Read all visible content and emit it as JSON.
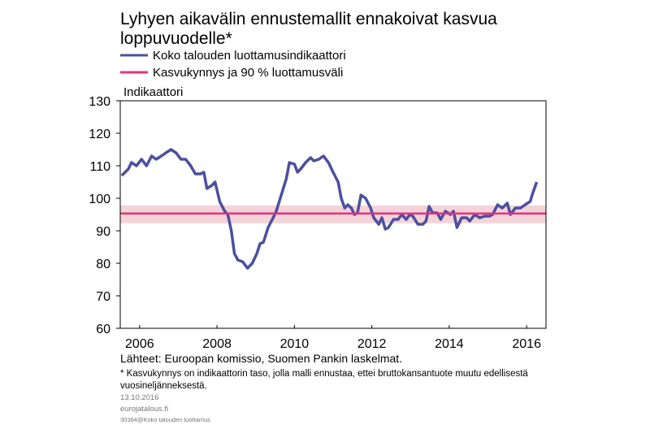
{
  "chart_data": {
    "type": "line",
    "title": [
      "Lyhyen aikavälin ennustemallit ennakoivat kasvua",
      "loppuvuodelle*"
    ],
    "y_label": "Indikaattori",
    "xlim": [
      2006,
      2017
    ],
    "xticks": [
      {
        "value": 2006.5,
        "label": "2006"
      },
      {
        "value": 2008.5,
        "label": "2008"
      },
      {
        "value": 2010.5,
        "label": "2010"
      },
      {
        "value": 2012.5,
        "label": "2012"
      },
      {
        "value": 2014.5,
        "label": "2014"
      },
      {
        "value": 2016.5,
        "label": "2016"
      }
    ],
    "ylim": [
      60,
      130
    ],
    "yticks": [
      60,
      70,
      80,
      90,
      100,
      110,
      120,
      130
    ],
    "series": [
      {
        "name": "Koko talouden luottamusindikaattori",
        "color": "#4a509f",
        "x": [
          2006.04,
          2006.21,
          2006.29,
          2006.42,
          2006.55,
          2006.68,
          2006.81,
          2006.93,
          2007.06,
          2007.18,
          2007.31,
          2007.44,
          2007.57,
          2007.69,
          2007.82,
          2007.94,
          2008.07,
          2008.16,
          2008.24,
          2008.37,
          2008.45,
          2008.57,
          2008.7,
          2008.78,
          2008.87,
          2008.95,
          2009.04,
          2009.16,
          2009.29,
          2009.41,
          2009.53,
          2009.61,
          2009.7,
          2009.82,
          2009.95,
          2010.03,
          2010.16,
          2010.29,
          2010.37,
          2010.5,
          2010.58,
          2010.66,
          2010.79,
          2010.92,
          2011.0,
          2011.13,
          2011.25,
          2011.38,
          2011.5,
          2011.63,
          2011.71,
          2011.8,
          2011.88,
          2011.97,
          2012.05,
          2012.13,
          2012.22,
          2012.34,
          2012.47,
          2012.55,
          2012.68,
          2012.76,
          2012.85,
          2012.93,
          2013.06,
          2013.18,
          2013.27,
          2013.39,
          2013.48,
          2013.56,
          2013.69,
          2013.82,
          2013.9,
          2013.98,
          2014.07,
          2014.19,
          2014.28,
          2014.4,
          2014.53,
          2014.61,
          2014.7,
          2014.82,
          2014.95,
          2015.03,
          2015.16,
          2015.29,
          2015.41,
          2015.54,
          2015.62,
          2015.75,
          2015.87,
          2016.0,
          2016.08,
          2016.21,
          2016.34,
          2016.46,
          2016.59,
          2016.67,
          2016.76
        ],
        "values": [
          107,
          109,
          111,
          110,
          112,
          110,
          113,
          112,
          113,
          114,
          115,
          114,
          112,
          112,
          110,
          107.5,
          107.5,
          108,
          103,
          104,
          105,
          99,
          96,
          95,
          90,
          83,
          81,
          80.5,
          78.5,
          80,
          83,
          86,
          86.5,
          91,
          94,
          96,
          101,
          106,
          111,
          110.5,
          108,
          109,
          111,
          112.5,
          111.5,
          112,
          113,
          111,
          108,
          105,
          100,
          97,
          98,
          97,
          95,
          95.5,
          101,
          100,
          97,
          94,
          92,
          94,
          90.5,
          91,
          93.5,
          93.5,
          95,
          93.5,
          95,
          94.5,
          92,
          92,
          93,
          97.5,
          95.5,
          95.5,
          93.5,
          96,
          95,
          96,
          91,
          94,
          94,
          93,
          95,
          94,
          94.5,
          94.5,
          95,
          98,
          97,
          98.5,
          95,
          97,
          97,
          98,
          99,
          102,
          105
        ]
      },
      {
        "name": "Kasvukynnys ja 90 % luottamusväli",
        "color": "#e6317f",
        "band_color": "#f3d3d8",
        "x": [
          2006,
          2017
        ],
        "values": [
          95.3,
          95.3
        ],
        "lower": [
          92.3,
          92.3
        ],
        "upper": [
          97.8,
          97.8
        ]
      }
    ],
    "notes": {
      "source": "Lähteet: Euroopan komissio, Suomen Pankin laskelmat.",
      "footnote": [
        "* Kasvukynnys on indikaattorin taso, jolla malli ennustaa, ettei bruttokansantuote muutu edellisestä",
        "vuosineljänneksestä."
      ],
      "date": "13.10.2016",
      "site": "eurojatalous.fi",
      "code": "30384@Koko talouden luottamus"
    }
  }
}
